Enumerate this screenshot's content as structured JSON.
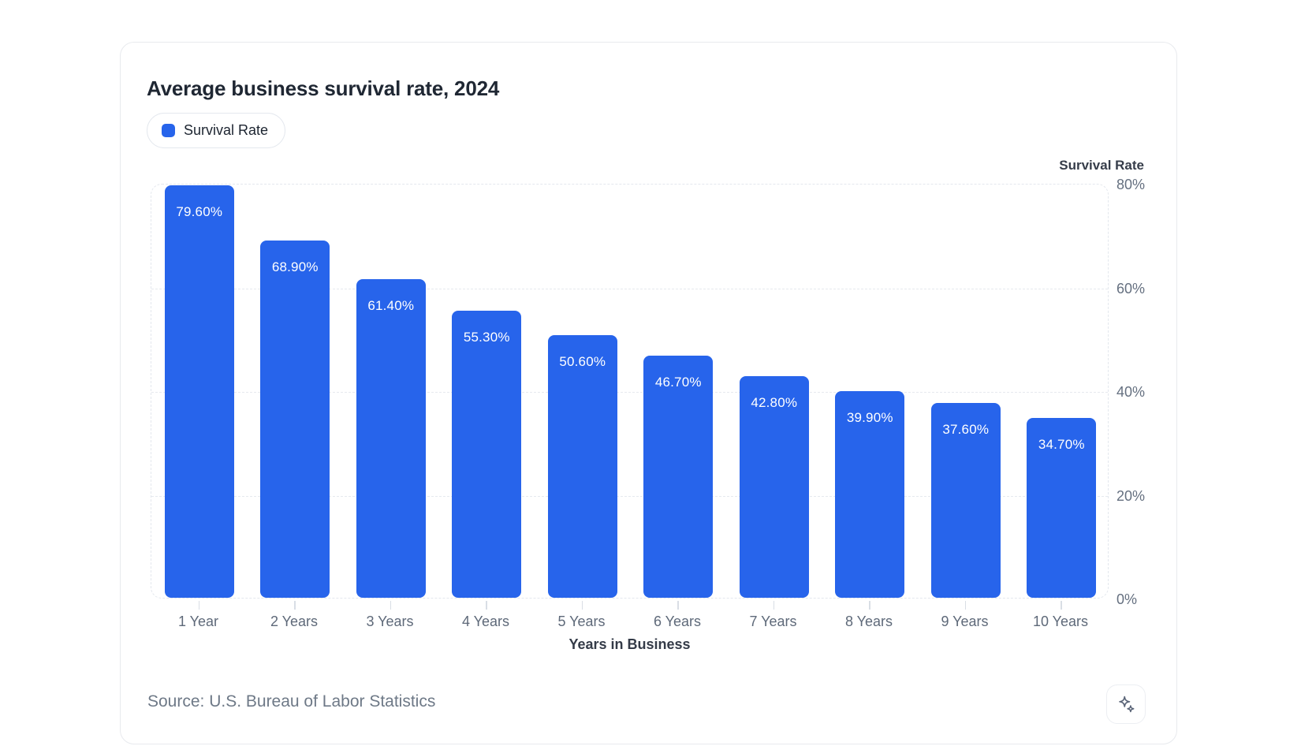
{
  "chart_data": {
    "type": "bar",
    "title": "Average business survival rate, 2024",
    "categories": [
      "1 Year",
      "2 Years",
      "3 Years",
      "4 Years",
      "5 Years",
      "6 Years",
      "7 Years",
      "8 Years",
      "9 Years",
      "10 Years"
    ],
    "values": [
      79.6,
      68.9,
      61.4,
      55.3,
      50.6,
      46.7,
      42.8,
      39.9,
      37.6,
      34.7
    ],
    "value_labels": [
      "79.60%",
      "68.90%",
      "61.40%",
      "55.30%",
      "50.60%",
      "46.70%",
      "42.80%",
      "39.90%",
      "37.60%",
      "34.70%"
    ],
    "xlabel": "Years in Business",
    "ylabel": "Survival Rate",
    "ylim": [
      0,
      80
    ],
    "yticks": [
      0,
      20,
      40,
      60,
      80
    ],
    "ytick_labels": [
      "0%",
      "20%",
      "40%",
      "60%",
      "80%"
    ],
    "axis_side": "right",
    "grid": "horizontal-dashed",
    "bar_color": "#2764eb",
    "legend": [
      {
        "label": "Survival Rate",
        "color": "#2764eb"
      }
    ],
    "legend_position": "top-left",
    "source": "Source: U.S. Bureau of Labor Statistics"
  },
  "icons": {
    "ai_button": "sparkles-icon"
  }
}
